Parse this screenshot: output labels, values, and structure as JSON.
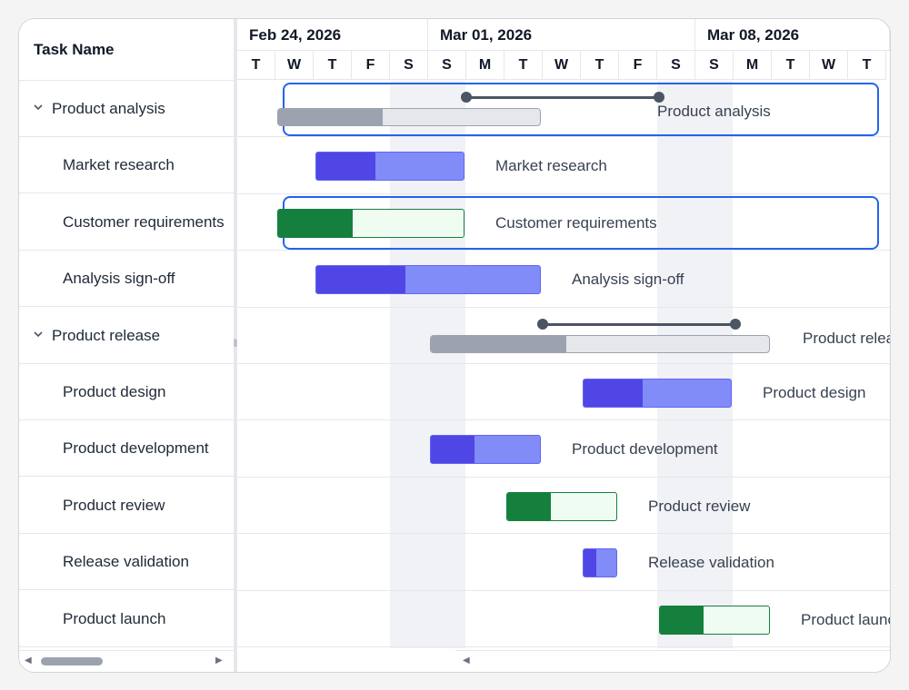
{
  "grid": {
    "header": "Task Name",
    "rows": [
      {
        "name": "Product analysis",
        "level": 0,
        "expanded": true
      },
      {
        "name": "Market research",
        "level": 1
      },
      {
        "name": "Customer requirements",
        "level": 1
      },
      {
        "name": "Analysis sign-off",
        "level": 1
      },
      {
        "name": "Product release",
        "level": 0,
        "expanded": true
      },
      {
        "name": "Product design",
        "level": 1
      },
      {
        "name": "Product development",
        "level": 1
      },
      {
        "name": "Product review",
        "level": 1
      },
      {
        "name": "Release validation",
        "level": 1
      },
      {
        "name": "Product launch",
        "level": 1
      }
    ]
  },
  "timeline": {
    "weeks": [
      "Feb 24, 2026",
      "Mar 01, 2026",
      "Mar 08, 2026"
    ],
    "days": [
      "T",
      "W",
      "T",
      "F",
      "S",
      "S",
      "M",
      "T",
      "W",
      "T",
      "F",
      "S",
      "S",
      "M",
      "T",
      "W",
      "T"
    ],
    "weekend_days": [
      "Feb 28",
      "Mar 01",
      "Mar 07",
      "Mar 08"
    ]
  },
  "tasks": [
    {
      "label": "Product analysis",
      "type": "summary",
      "start": "Feb 25",
      "end": "Mar 03",
      "progress": 0.4,
      "baseline": {
        "start": "Mar 02",
        "end": "Mar 07"
      },
      "selected": true
    },
    {
      "label": "Market research",
      "type": "task",
      "color": "blue",
      "start": "Feb 26",
      "end": "Mar 01",
      "progress": 0.4
    },
    {
      "label": "Customer requirements",
      "type": "task",
      "color": "green",
      "start": "Feb 25",
      "end": "Mar 01",
      "progress": 0.4,
      "selected": true
    },
    {
      "label": "Analysis sign-off",
      "type": "task",
      "color": "blue",
      "start": "Feb 26",
      "end": "Mar 03",
      "progress": 0.4
    },
    {
      "label": "Product release",
      "type": "summary",
      "start": "Mar 01",
      "end": "Mar 09",
      "progress": 0.4,
      "baseline": {
        "start": "Mar 04",
        "end": "Mar 09"
      }
    },
    {
      "label": "Product design",
      "type": "task",
      "color": "blue",
      "start": "Mar 05",
      "end": "Mar 08",
      "progress": 0.4
    },
    {
      "label": "Product development",
      "type": "task",
      "color": "blue",
      "start": "Mar 01",
      "end": "Mar 03",
      "progress": 0.4
    },
    {
      "label": "Product review",
      "type": "task",
      "color": "green",
      "start": "Mar 03",
      "end": "Mar 05",
      "progress": 0.4
    },
    {
      "label": "Release validation",
      "type": "task",
      "color": "blue",
      "start": "Mar 05",
      "end": "Mar 05",
      "progress": 0.4
    },
    {
      "label": "Product launch",
      "type": "task",
      "color": "green",
      "start": "Mar 07",
      "end": "Mar 09",
      "progress": 0.4
    }
  ],
  "colors": {
    "accent": "#2563eb",
    "task_blue": "#4f46e5",
    "task_green": "#15803d",
    "summary": "#9ca3af"
  }
}
